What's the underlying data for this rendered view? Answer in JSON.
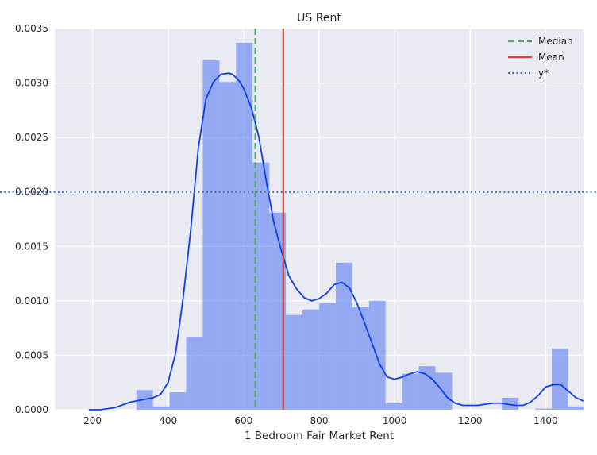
{
  "chart_data": {
    "type": "histogram",
    "title": "US Rent",
    "xlabel": "1 Bedroom Fair Market Rent",
    "ylabel": "",
    "xlim": [
      100,
      1500
    ],
    "ylim": [
      0,
      0.0035
    ],
    "xticks": [
      200,
      400,
      600,
      800,
      1000,
      1200,
      1400
    ],
    "yticks": [
      0.0,
      0.0005,
      0.001,
      0.0015,
      0.002,
      0.0025,
      0.003,
      0.0035
    ],
    "xtick_labels": [
      "200",
      "400",
      "600",
      "800",
      "1000",
      "1200",
      "1400"
    ],
    "ytick_labels": [
      "0.0000",
      "0.0005",
      "0.0010",
      "0.0015",
      "0.0020",
      "0.0025",
      "0.0030",
      "0.0035"
    ],
    "grid": true,
    "legend_position": "top-right",
    "histogram": {
      "color": "#4c72f0",
      "bins": [
        {
          "x0": 316,
          "x1": 360,
          "density": 0.00018
        },
        {
          "x0": 360,
          "x1": 404,
          "density": 3e-05
        },
        {
          "x0": 404,
          "x1": 448,
          "density": 0.00016
        },
        {
          "x0": 448,
          "x1": 492,
          "density": 0.00067
        },
        {
          "x0": 492,
          "x1": 536,
          "density": 0.00321
        },
        {
          "x0": 536,
          "x1": 580,
          "density": 0.00301
        },
        {
          "x0": 580,
          "x1": 624,
          "density": 0.00337
        },
        {
          "x0": 624,
          "x1": 668,
          "density": 0.00227
        },
        {
          "x0": 668,
          "x1": 712,
          "density": 0.00181
        },
        {
          "x0": 712,
          "x1": 756,
          "density": 0.00087
        },
        {
          "x0": 756,
          "x1": 800,
          "density": 0.00092
        },
        {
          "x0": 800,
          "x1": 844,
          "density": 0.00098
        },
        {
          "x0": 844,
          "x1": 888,
          "density": 0.00135
        },
        {
          "x0": 888,
          "x1": 932,
          "density": 0.00094
        },
        {
          "x0": 932,
          "x1": 976,
          "density": 0.001
        },
        {
          "x0": 976,
          "x1": 1020,
          "density": 6e-05
        },
        {
          "x0": 1020,
          "x1": 1064,
          "density": 0.00033
        },
        {
          "x0": 1064,
          "x1": 1108,
          "density": 0.0004
        },
        {
          "x0": 1108,
          "x1": 1152,
          "density": 0.00034
        },
        {
          "x0": 1152,
          "x1": 1196,
          "density": 0.0
        },
        {
          "x0": 1196,
          "x1": 1240,
          "density": 0.0
        },
        {
          "x0": 1240,
          "x1": 1284,
          "density": 0.0
        },
        {
          "x0": 1284,
          "x1": 1328,
          "density": 0.00011
        },
        {
          "x0": 1328,
          "x1": 1372,
          "density": 0.0
        },
        {
          "x0": 1372,
          "x1": 1416,
          "density": 1e-05
        },
        {
          "x0": 1416,
          "x1": 1460,
          "density": 0.00056
        },
        {
          "x0": 1460,
          "x1": 1504,
          "density": 3e-05
        }
      ]
    },
    "kde": {
      "color": "#0d3fe6",
      "x": [
        190,
        220,
        260,
        300,
        330,
        360,
        380,
        400,
        420,
        440,
        460,
        480,
        500,
        520,
        540,
        560,
        570,
        580,
        590,
        600,
        620,
        640,
        660,
        680,
        700,
        720,
        740,
        760,
        780,
        800,
        820,
        840,
        860,
        880,
        900,
        920,
        940,
        960,
        980,
        1000,
        1020,
        1040,
        1060,
        1080,
        1100,
        1120,
        1140,
        1160,
        1180,
        1200,
        1220,
        1240,
        1260,
        1280,
        1300,
        1320,
        1340,
        1360,
        1380,
        1400,
        1420,
        1440,
        1460,
        1480,
        1500
      ],
      "y": [
        0.0,
        0.0,
        2e-05,
        7e-05,
        9e-05,
        0.00011,
        0.00014,
        0.00025,
        0.00052,
        0.00103,
        0.00165,
        0.0024,
        0.00285,
        0.00301,
        0.00308,
        0.00309,
        0.00308,
        0.00305,
        0.00301,
        0.00295,
        0.00278,
        0.00251,
        0.0021,
        0.00172,
        0.00146,
        0.00123,
        0.00111,
        0.00103,
        0.001,
        0.00102,
        0.00107,
        0.00115,
        0.00117,
        0.00112,
        0.00098,
        0.0008,
        0.00061,
        0.00042,
        0.0003,
        0.00028,
        0.0003,
        0.00033,
        0.00035,
        0.00033,
        0.00028,
        0.0002,
        0.00011,
        6e-05,
        4e-05,
        4e-05,
        4e-05,
        5e-05,
        6e-05,
        6e-05,
        5e-05,
        4e-05,
        4e-05,
        7e-05,
        0.00013,
        0.00021,
        0.00023,
        0.00023,
        0.00017,
        0.00011,
        8e-05
      ]
    },
    "series": [
      {
        "name": "Median",
        "type": "vline",
        "x": 631,
        "color": "#55a868",
        "style": "dashed"
      },
      {
        "name": "Mean",
        "type": "vline",
        "x": 705,
        "color": "#d9443b",
        "style": "solid"
      },
      {
        "name": "y*",
        "type": "hline",
        "y": 0.002,
        "color": "#4c72b0",
        "style": "dotted"
      }
    ]
  }
}
